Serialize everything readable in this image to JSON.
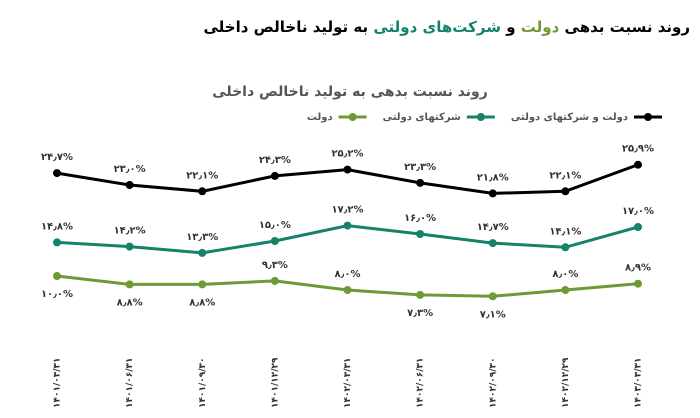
{
  "header": {
    "title_parts": [
      "روند نسبت بدهی ",
      "دولت",
      " و ",
      "شرکت‌های دولتی",
      " به تولید ناخالص داخلی"
    ]
  },
  "chart_data": {
    "type": "line",
    "title": "روند نسبت بدهی به تولید ناخالص داخلی",
    "categories": [
      "۱۴۰۱/۰۳/۳۱",
      "۱۴۰۱/۰۶/۳۱",
      "۱۴۰۱/۰۹/۳۰",
      "۱۴۰۱/۱۲/۲۹",
      "۱۴۰۲/۰۳/۳۱",
      "۱۴۰۲/۰۶/۳۱",
      "۱۴۰۲/۰۹/۳۰",
      "۱۴۰۲/۱۲/۲۹",
      "۱۴۰۳/۰۳/۳۱"
    ],
    "series": [
      {
        "name": "دولت و شرکتهای دولتی",
        "color": "#000000",
        "values": [
          24.7,
          23.0,
          22.1,
          24.3,
          25.2,
          23.3,
          21.8,
          22.1,
          25.9
        ],
        "value_labels": [
          "۲۴٫۷%",
          "۲۳٫۰%",
          "۲۲٫۱%",
          "۲۴٫۳%",
          "۲۵٫۲%",
          "۲۳٫۳%",
          "۲۱٫۸%",
          "۲۲٫۱%",
          "۲۵٫۹%"
        ]
      },
      {
        "name": "شرکتهای دولتی",
        "color": "#15826a",
        "values": [
          14.8,
          14.2,
          13.3,
          15.0,
          17.2,
          16.0,
          14.7,
          14.1,
          17.0
        ],
        "value_labels": [
          "۱۴٫۸%",
          "۱۴٫۲%",
          "۱۳٫۳%",
          "۱۵٫۰%",
          "۱۷٫۲%",
          "۱۶٫۰%",
          "۱۴٫۷%",
          "۱۴٫۱%",
          "۱۷٫۰%"
        ]
      },
      {
        "name": "دولت",
        "color": "#6e9a35",
        "values": [
          10.0,
          8.8,
          8.8,
          9.3,
          8.0,
          7.3,
          7.1,
          8.0,
          8.9
        ],
        "value_labels": [
          "۱۰٫۰%",
          "۸٫۸%",
          "۸٫۸%",
          "۹٫۳%",
          "۸٫۰%",
          "۷٫۳%",
          "۷٫۱%",
          "۸٫۰%",
          "۸٫۹%"
        ]
      }
    ]
  }
}
